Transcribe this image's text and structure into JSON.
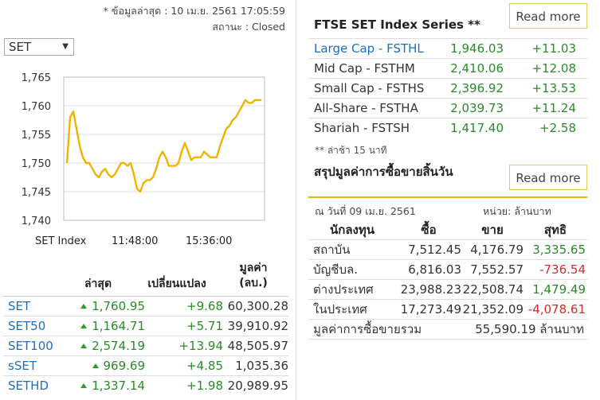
{
  "update": {
    "timestamp": "* ข้อมูลล่าสุด : 10 เม.ย. 2561 17:05:59",
    "status": "สถานะ : Closed"
  },
  "index_select": {
    "value": "SET"
  },
  "chart_data": {
    "type": "line",
    "series_label": "SET Index",
    "x_ticks": [
      "11:48:00",
      "15:36:00"
    ],
    "y_ticks": [
      "1,765",
      "1,760",
      "1,755",
      "1,750",
      "1,745",
      "1,740"
    ],
    "ylim": [
      1740,
      1765
    ],
    "grid": true,
    "color": "#f0b400",
    "values": [
      1750,
      1758,
      1759,
      1756,
      1753,
      1751,
      1750,
      1750,
      1749,
      1748,
      1747.5,
      1748.5,
      1749,
      1748,
      1747.5,
      1748,
      1749,
      1750,
      1750,
      1749.5,
      1750,
      1748,
      1745.5,
      1745,
      1746.5,
      1747,
      1747,
      1747.5,
      1749,
      1751,
      1752,
      1751,
      1749.5,
      1749.5,
      1749.5,
      1750,
      1752,
      1753.5,
      1752,
      1750.5,
      1751,
      1751,
      1751,
      1752,
      1751.5,
      1751,
      1751,
      1751,
      1753,
      1754.5,
      1756,
      1756.5,
      1757.5,
      1758,
      1759,
      1760,
      1761,
      1760.5,
      1760.5,
      1761,
      1761,
      1761
    ]
  },
  "summary": {
    "headers": {
      "last": "ล่าสุด",
      "change": "เปลี่ยนแปลง",
      "value": "มูลค่า\n(ลบ.)"
    },
    "rows": [
      {
        "name": "SET",
        "last": "1,760.95",
        "change": "+9.68",
        "value": "60,300.28"
      },
      {
        "name": "SET50",
        "last": "1,164.71",
        "change": "+5.71",
        "value": "39,910.92"
      },
      {
        "name": "SET100",
        "last": "2,574.19",
        "change": "+13.94",
        "value": "48,505.97"
      },
      {
        "name": "sSET",
        "last": "969.69",
        "change": "+4.85",
        "value": "1,035.36"
      },
      {
        "name": "SETHD",
        "last": "1,337.14",
        "change": "+1.98",
        "value": "20,989.95"
      }
    ]
  },
  "ftse": {
    "title": "FTSE SET Index Series **",
    "read_more": "Read more",
    "rows": [
      {
        "name": "Large Cap - FSTHL",
        "value": "1,946.03",
        "change": "+11.03"
      },
      {
        "name": "Mid Cap - FSTHM",
        "value": "2,410.06",
        "change": "+12.08"
      },
      {
        "name": "Small Cap - FSTHS",
        "value": "2,396.92",
        "change": "+13.53"
      },
      {
        "name": "All-Share - FSTHA",
        "value": "2,039.73",
        "change": "+11.24"
      },
      {
        "name": "Shariah - FSTSH",
        "value": "1,417.40",
        "change": "+2.58"
      }
    ],
    "delayed": "** ล่าช้า 15 นาที"
  },
  "trading": {
    "title": "สรุปมูลค่าการซื้อขายสิ้นวัน",
    "read_more": "Read more",
    "date": "ณ วันที่ 09 เม.ย. 2561",
    "unit": "หน่วย: ล้านบาท",
    "headers": {
      "investor": "นักลงทุน",
      "buy": "ซื้อ",
      "sell": "ขาย",
      "net": "สุทธิ"
    },
    "rows": [
      {
        "investor": "สถาบัน",
        "buy": "7,512.45",
        "sell": "4,176.79",
        "net": "3,335.65",
        "sign": "pos"
      },
      {
        "investor": "บัญชีบล.",
        "buy": "6,816.03",
        "sell": "7,552.57",
        "net": "-736.54",
        "sign": "neg"
      },
      {
        "investor": "ต่างประเทศ",
        "buy": "23,988.23",
        "sell": "22,508.74",
        "net": "1,479.49",
        "sign": "pos"
      },
      {
        "investor": "ในประเทศ",
        "buy": "17,273.49",
        "sell": "21,352.09",
        "net": "-4,078.61",
        "sign": "neg"
      }
    ],
    "total_label": "มูลค่าการซื้อขายรวม",
    "total_value": "55,590.19 ล้านบาท"
  }
}
